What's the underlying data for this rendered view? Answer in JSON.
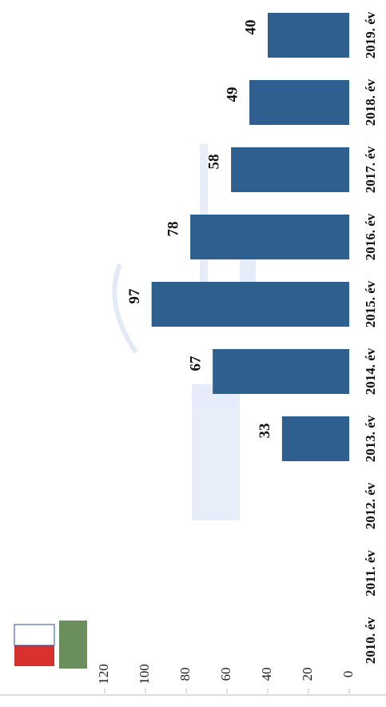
{
  "chart_data": {
    "type": "bar",
    "orientation": "horizontal",
    "categories": [
      "2010. év",
      "2011. év",
      "2012. év",
      "2013. év",
      "2014. év",
      "2015. év",
      "2016. év",
      "2017. év",
      "2018. év",
      "2019. év"
    ],
    "values": [
      null,
      null,
      null,
      33,
      67,
      97,
      78,
      58,
      49,
      40
    ],
    "color": "#2f5f8f",
    "ylim": [
      0,
      120
    ],
    "yticks": [
      0,
      20,
      40,
      60,
      80,
      100,
      120
    ],
    "grid": false
  }
}
